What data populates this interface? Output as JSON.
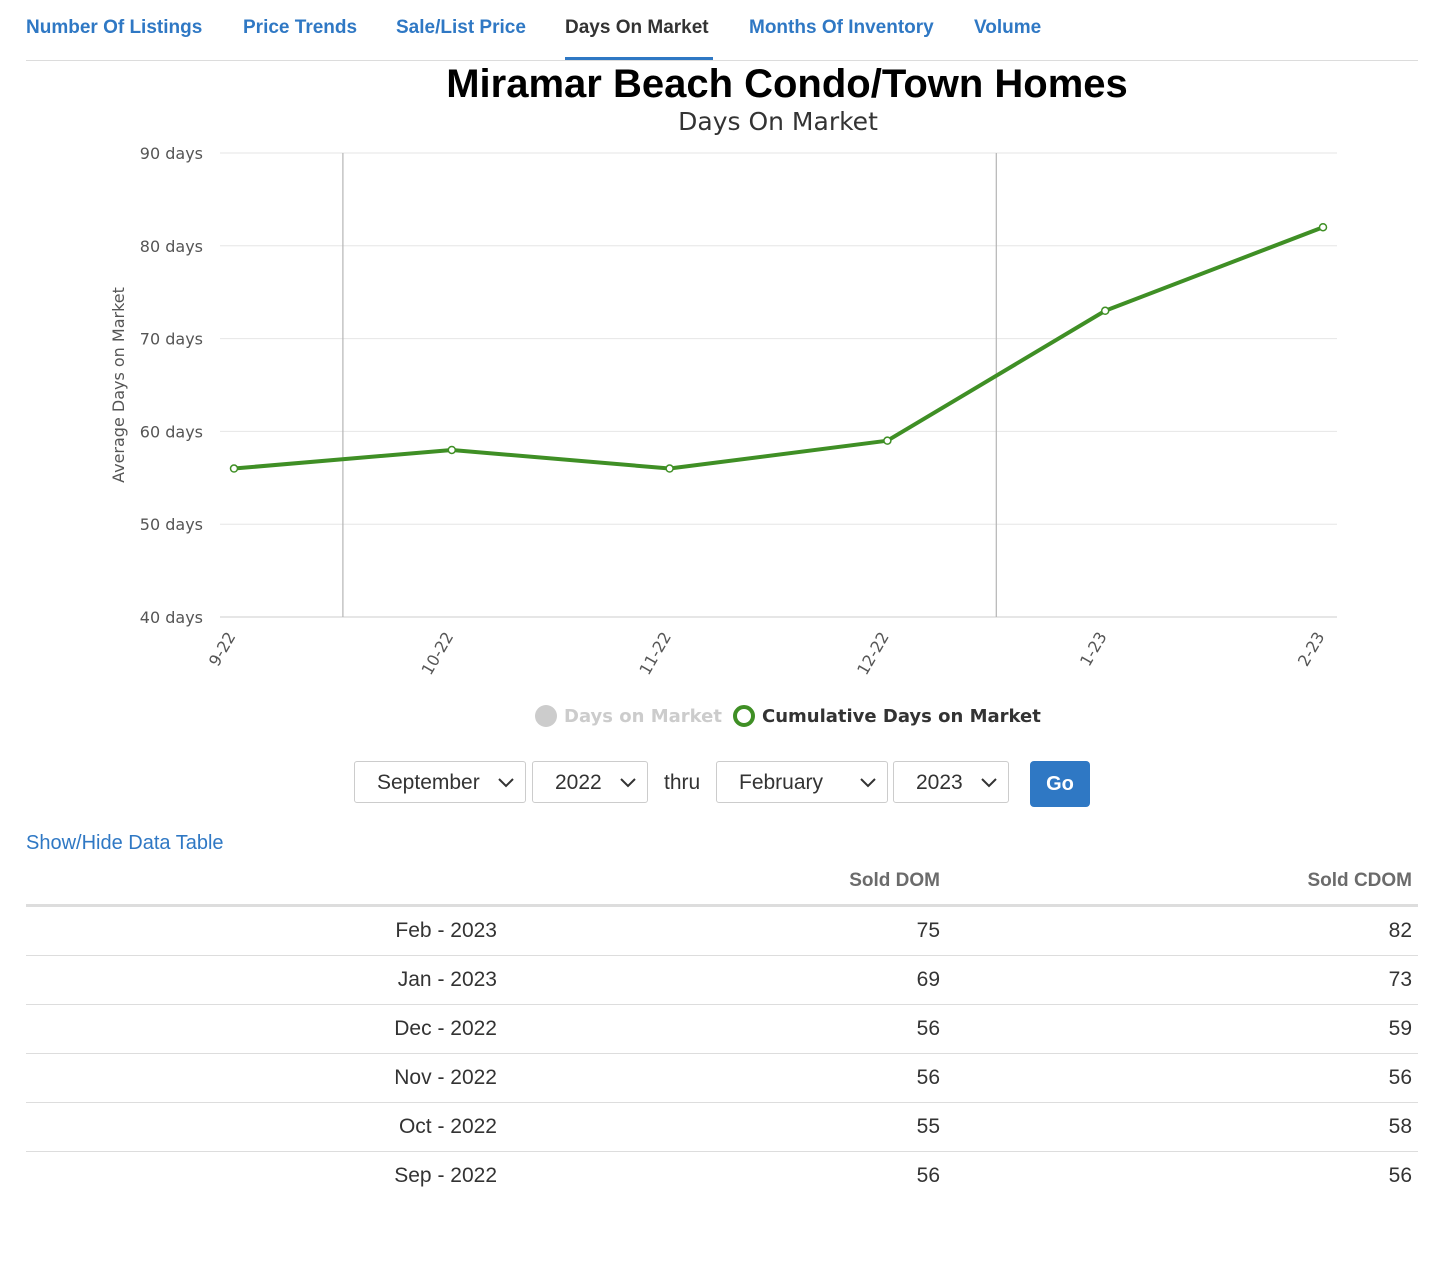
{
  "tabs": [
    {
      "label": "Number Of Listings",
      "active": false
    },
    {
      "label": "Price Trends",
      "active": false
    },
    {
      "label": "Sale/List Price",
      "active": false
    },
    {
      "label": "Days On Market",
      "active": true
    },
    {
      "label": "Months Of Inventory",
      "active": false
    },
    {
      "label": "Volume",
      "active": false
    }
  ],
  "colors": {
    "accent": "#2f78c4",
    "series_active": "#3f8f25",
    "series_inactive": "#cccccc",
    "legend_inactive_text": "#cccccc",
    "legend_active_text": "#333333"
  },
  "chart_data": {
    "type": "line",
    "title": "Miramar Beach Condo/Town Homes",
    "subtitle": "Days On Market",
    "ylabel": "Average Days on Market",
    "xlabel": "",
    "categories": [
      "9-22",
      "10-22",
      "11-22",
      "12-22",
      "1-23",
      "2-23"
    ],
    "y_ticks": [
      "40 days",
      "50 days",
      "60 days",
      "70 days",
      "80 days",
      "90 days"
    ],
    "ylim": [
      40,
      90
    ],
    "grid": true,
    "legend_position": "bottom-center",
    "series": [
      {
        "name": "Days on Market",
        "values": [
          56,
          55,
          56,
          56,
          69,
          75
        ],
        "visible": false
      },
      {
        "name": "Cumulative Days on Market",
        "values": [
          56,
          58,
          56,
          59,
          73,
          82
        ],
        "visible": true
      }
    ]
  },
  "controls": {
    "start_month": "September",
    "start_year": "2022",
    "thru_label": "thru",
    "end_month": "February",
    "end_year": "2023",
    "go_label": "Go"
  },
  "toggle_link": "Show/Hide Data Table",
  "table": {
    "headers": [
      "",
      "Sold DOM",
      "Sold CDOM"
    ],
    "rows": [
      [
        "Feb - 2023",
        "75",
        "82"
      ],
      [
        "Jan - 2023",
        "69",
        "73"
      ],
      [
        "Dec - 2022",
        "56",
        "59"
      ],
      [
        "Nov - 2022",
        "56",
        "56"
      ],
      [
        "Oct - 2022",
        "55",
        "58"
      ],
      [
        "Sep - 2022",
        "56",
        "56"
      ]
    ]
  }
}
